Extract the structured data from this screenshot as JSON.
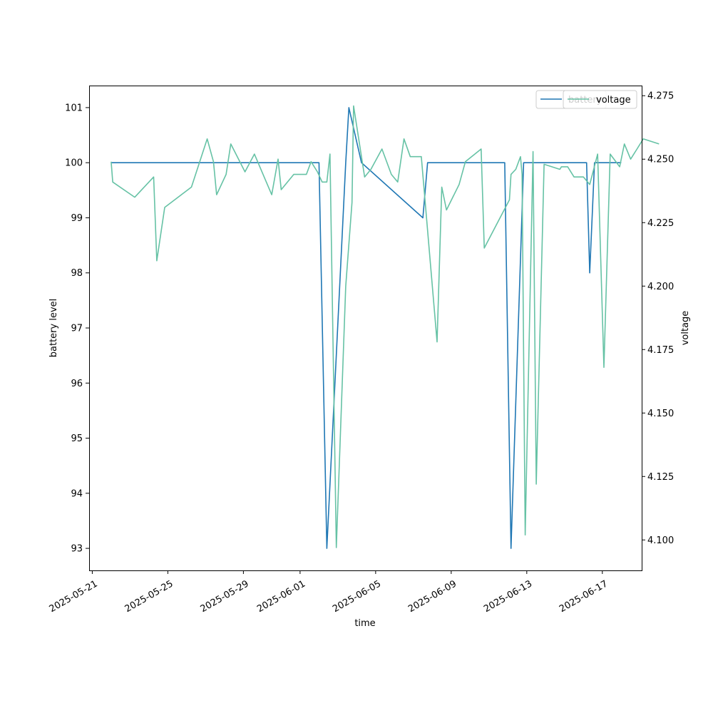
{
  "chart_data": {
    "type": "line",
    "title": "",
    "xlabel": "time",
    "ylabel_left": "battery level",
    "ylabel_right": "voltage",
    "x_ticks": [
      "2025-05-21",
      "2025-05-25",
      "2025-05-29",
      "2025-06-01",
      "2025-06-05",
      "2025-06-09",
      "2025-06-13",
      "2025-06-17"
    ],
    "y_left_ticks": [
      93,
      94,
      95,
      96,
      97,
      98,
      99,
      100,
      101
    ],
    "y_right_ticks": [
      "4.100",
      "4.125",
      "4.150",
      "4.175",
      "4.200",
      "4.225",
      "4.250",
      "4.275"
    ],
    "xlim": [
      "2025-05-20T20:00",
      "2025-06-19T02:00"
    ],
    "ylim_left": [
      92.6,
      101.4
    ],
    "ylim_right": [
      4.088,
      4.279
    ],
    "legend_position": "upper right",
    "grid": false,
    "colors": {
      "battery": "#1f77b4",
      "voltage": "#66c2a5"
    },
    "series": [
      {
        "name": "battery",
        "axis": "left",
        "points": [
          [
            "2025-05-22T00:00",
            100
          ],
          [
            "2025-06-02T00:00",
            100
          ],
          [
            "2025-06-02T10:00",
            93
          ],
          [
            "2025-06-03T10:00",
            100
          ],
          [
            "2025-06-03T14:00",
            101
          ],
          [
            "2025-06-04T06:00",
            100
          ],
          [
            "2025-06-07T12:00",
            99
          ],
          [
            "2025-06-07T18:00",
            100
          ],
          [
            "2025-06-11T20:00",
            100
          ],
          [
            "2025-06-12T04:00",
            93
          ],
          [
            "2025-06-12T20:00",
            100
          ],
          [
            "2025-06-16T04:00",
            100
          ],
          [
            "2025-06-16T08:00",
            98
          ],
          [
            "2025-06-16T14:00",
            100
          ],
          [
            "2025-06-18T00:00",
            100
          ]
        ]
      },
      {
        "name": "voltage",
        "axis": "right",
        "points": [
          [
            "2025-05-22T00:00",
            4.249
          ],
          [
            "2025-05-22T02:00",
            4.241
          ],
          [
            "2025-05-23T06:00",
            4.235
          ],
          [
            "2025-05-24T06:00",
            4.243
          ],
          [
            "2025-05-24T10:00",
            4.21
          ],
          [
            "2025-05-24T20:00",
            4.231
          ],
          [
            "2025-05-26T06:00",
            4.239
          ],
          [
            "2025-05-27T02:00",
            4.258
          ],
          [
            "2025-05-27T10:00",
            4.249
          ],
          [
            "2025-05-27T14:00",
            4.236
          ],
          [
            "2025-05-28T02:00",
            4.244
          ],
          [
            "2025-05-28T08:00",
            4.256
          ],
          [
            "2025-05-29T02:00",
            4.245
          ],
          [
            "2025-05-29T14:00",
            4.252
          ],
          [
            "2025-05-30T12:00",
            4.236
          ],
          [
            "2025-05-30T20:00",
            4.25
          ],
          [
            "2025-05-31T00:00",
            4.238
          ],
          [
            "2025-05-31T16:00",
            4.244
          ],
          [
            "2025-06-01T08:00",
            4.244
          ],
          [
            "2025-06-01T14:00",
            4.249
          ],
          [
            "2025-06-01T22:00",
            4.245
          ],
          [
            "2025-06-02T04:00",
            4.241
          ],
          [
            "2025-06-02T10:00",
            4.241
          ],
          [
            "2025-06-02T14:00",
            4.252
          ],
          [
            "2025-06-02T22:00",
            4.097
          ],
          [
            "2025-06-03T10:00",
            4.2
          ],
          [
            "2025-06-03T18:00",
            4.233
          ],
          [
            "2025-06-03T20:00",
            4.271
          ],
          [
            "2025-06-04T10:00",
            4.243
          ],
          [
            "2025-06-04T18:00",
            4.246
          ],
          [
            "2025-06-05T08:00",
            4.254
          ],
          [
            "2025-06-05T20:00",
            4.244
          ],
          [
            "2025-06-06T04:00",
            4.241
          ],
          [
            "2025-06-06T12:00",
            4.258
          ],
          [
            "2025-06-06T20:00",
            4.251
          ],
          [
            "2025-06-07T10:00",
            4.251
          ],
          [
            "2025-06-08T06:00",
            4.178
          ],
          [
            "2025-06-08T12:00",
            4.239
          ],
          [
            "2025-06-08T18:00",
            4.23
          ],
          [
            "2025-06-09T10:00",
            4.24
          ],
          [
            "2025-06-09T18:00",
            4.249
          ],
          [
            "2025-06-10T14:00",
            4.254
          ],
          [
            "2025-06-10T18:00",
            4.215
          ],
          [
            "2025-06-12T02:00",
            4.234
          ],
          [
            "2025-06-12T04:00",
            4.244
          ],
          [
            "2025-06-12T10:00",
            4.246
          ],
          [
            "2025-06-12T16:00",
            4.251
          ],
          [
            "2025-06-12T18:00",
            4.244
          ],
          [
            "2025-06-12T22:00",
            4.102
          ],
          [
            "2025-06-13T08:00",
            4.253
          ],
          [
            "2025-06-13T12:00",
            4.122
          ],
          [
            "2025-06-13T22:00",
            4.248
          ],
          [
            "2025-06-14T18:00",
            4.246
          ],
          [
            "2025-06-14T20:00",
            4.247
          ],
          [
            "2025-06-15T04:00",
            4.247
          ],
          [
            "2025-06-15T12:00",
            4.243
          ],
          [
            "2025-06-16T00:00",
            4.243
          ],
          [
            "2025-06-16T08:00",
            4.24
          ],
          [
            "2025-06-16T18:00",
            4.252
          ],
          [
            "2025-06-17T02:00",
            4.168
          ],
          [
            "2025-06-17T10:00",
            4.252
          ],
          [
            "2025-06-17T22:00",
            4.247
          ],
          [
            "2025-06-18T04:00",
            4.256
          ],
          [
            "2025-06-18T12:00",
            4.25
          ],
          [
            "2025-06-18T20:00",
            4.254
          ],
          [
            "2025-06-19T04:00",
            4.258
          ],
          [
            "2025-06-20T00:00",
            4.256
          ]
        ]
      }
    ]
  }
}
